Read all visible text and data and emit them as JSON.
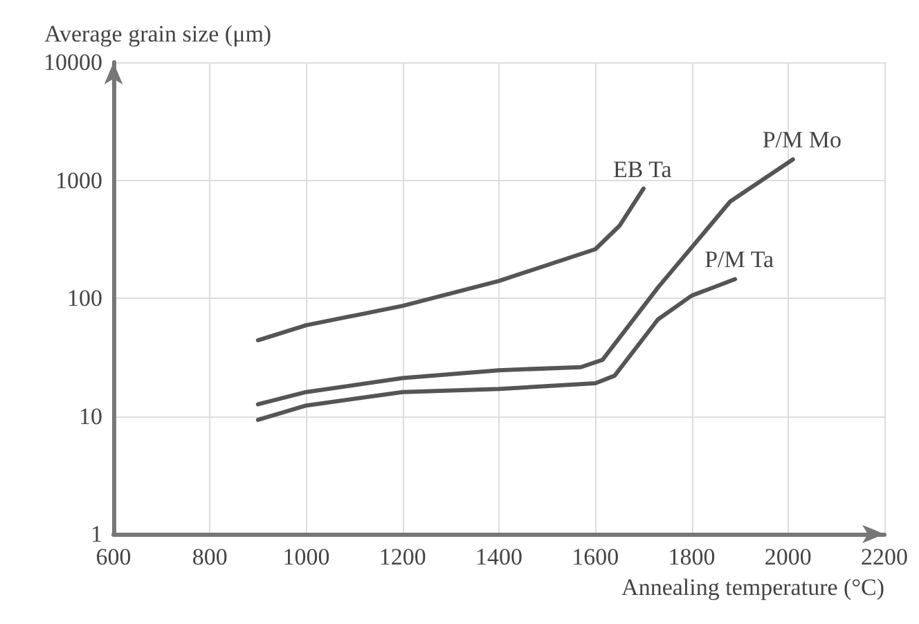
{
  "chart_data": {
    "type": "line",
    "xlabel": "Annealing temperature (°C)",
    "ylabel": "Average grain size (μm)",
    "xlim": [
      600,
      2200
    ],
    "xticks": [
      600,
      800,
      1000,
      1200,
      1400,
      1600,
      1800,
      2000,
      2200
    ],
    "ylim": [
      1,
      10000
    ],
    "yticks": [
      1,
      10,
      100,
      1000,
      10000
    ],
    "log": "y",
    "grid": true,
    "legend": false,
    "marker": "none",
    "line_style": "solid",
    "series": [
      {
        "name": "EB Ta",
        "color": "#555555",
        "x": [
          900,
          1000,
          1200,
          1400,
          1600,
          1650,
          1700
        ],
        "values": [
          44,
          59,
          86,
          140,
          260,
          410,
          850
        ]
      },
      {
        "name": "P/M Mo",
        "color": "#555555",
        "x": [
          900,
          1000,
          1200,
          1400,
          1570,
          1615,
          1730,
          1880,
          2010
        ],
        "values": [
          12.6,
          16,
          21,
          24.5,
          26,
          30,
          123,
          660,
          1500
        ]
      },
      {
        "name": "P/M Ta",
        "color": "#555555",
        "x": [
          900,
          1000,
          1200,
          1400,
          1600,
          1640,
          1730,
          1800,
          1890
        ],
        "values": [
          9.3,
          12.3,
          16,
          17,
          19,
          22,
          66,
          105,
          145
        ]
      }
    ]
  }
}
